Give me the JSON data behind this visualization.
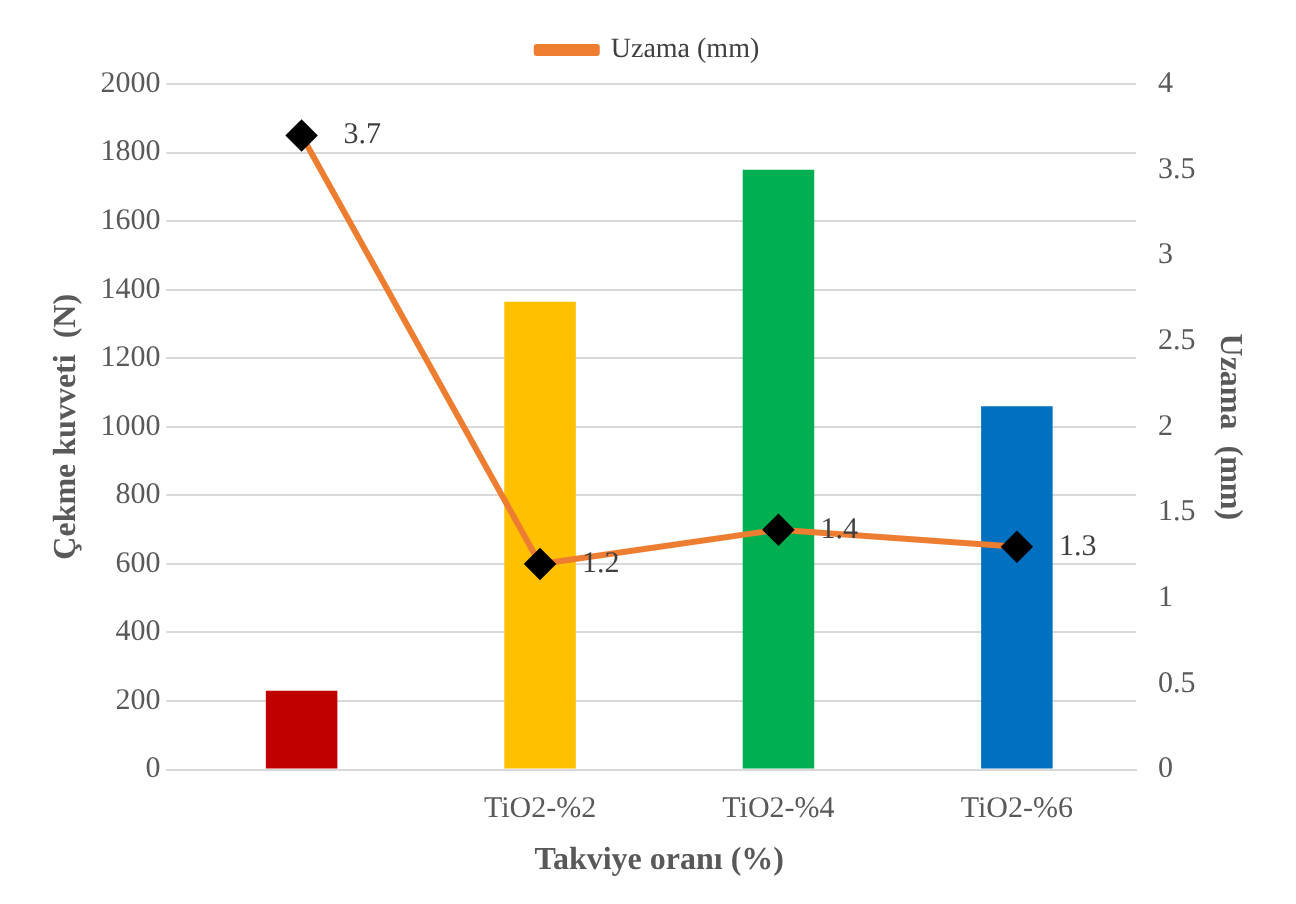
{
  "chart_data": {
    "type": "bar",
    "xlabel": "Takviye oranı (%)",
    "ylabel": "Çekme kuvveti  (N)",
    "y2label": "Uzama  (mm)",
    "categories": [
      null,
      "TiO2-%2",
      "TiO2-%4",
      "TiO2-%6"
    ],
    "series": [
      {
        "colors": [
          "#c00000",
          "#ffc000",
          "#00b050",
          "#0070c0"
        ],
        "values": [
          230,
          1365,
          1750,
          1060
        ]
      },
      {
        "type": "line",
        "name": "Uzama (mm)",
        "color": "#ed7d31",
        "axis": "y2",
        "marker": "diamond",
        "value_labels": [
          "3.7",
          "1.2",
          "1.4",
          "1.3"
        ],
        "values": [
          3.7,
          1.2,
          1.4,
          1.3
        ]
      }
    ],
    "ylim": [
      0,
      2000
    ],
    "yticks": [
      0,
      200,
      400,
      600,
      800,
      1000,
      1200,
      1400,
      1600,
      1800,
      2000
    ],
    "y2lim": [
      0,
      4
    ],
    "y2ticks": [
      0,
      0.5,
      1,
      1.5,
      2,
      2.5,
      3,
      3.5,
      4
    ],
    "grid": "y",
    "legend": "top"
  }
}
